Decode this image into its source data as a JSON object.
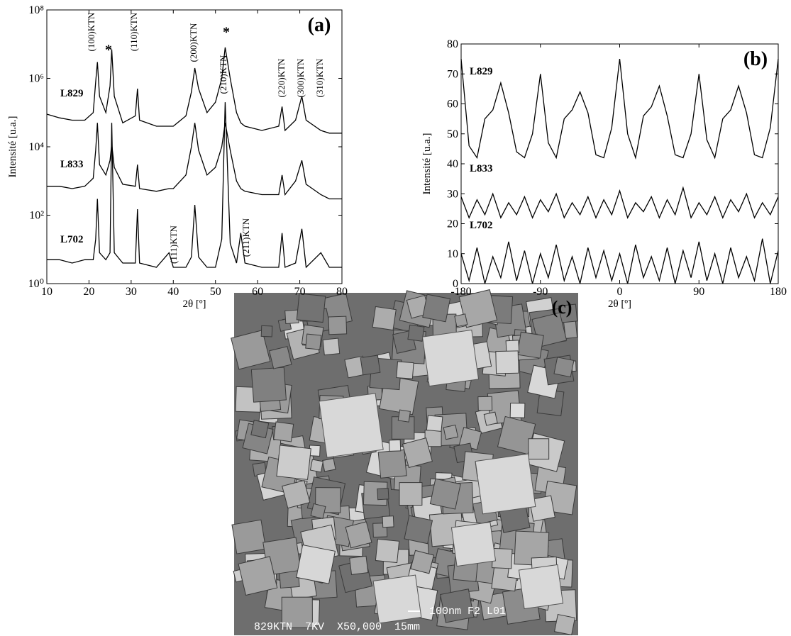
{
  "chart_data": [
    {
      "type": "line",
      "panel_label": "(a)",
      "x_label": "2θ [º]",
      "y_label": "Intensité [u.a.]",
      "log_y": true,
      "xlim": [
        10,
        80
      ],
      "xticks": [
        10,
        20,
        30,
        40,
        50,
        60,
        70,
        80
      ],
      "ylim": [
        1,
        100000000
      ],
      "yticks": [
        {
          "value": 1,
          "label": "10⁰"
        },
        {
          "value": 100,
          "label": "10²"
        },
        {
          "value": 10000,
          "label": "10⁴"
        },
        {
          "value": 1000000,
          "label": "10⁶"
        },
        {
          "value": 100000000,
          "label": "10⁸"
        }
      ],
      "annotations": [
        "(100)KTN",
        "(110)KTN",
        "(200)KTN",
        "(210)KTN",
        "(220)KTN",
        "(300)KTN",
        "(310)KTN",
        "(111)KTN",
        "(211)KTN",
        "*",
        "*"
      ],
      "x": [
        10,
        13,
        16,
        19,
        21,
        21.6,
        22,
        22.5,
        24,
        25,
        25.4,
        26,
        28,
        31,
        31.5,
        32,
        36,
        39,
        40,
        43,
        44.3,
        45.1,
        46,
        48,
        50,
        51.5,
        52.3,
        53.5,
        55,
        56,
        57,
        61,
        65,
        65.8,
        66.5,
        69,
        70.5,
        71.5,
        75,
        77,
        80
      ],
      "series": [
        {
          "name": "L829",
          "color": "#000000",
          "values": [
            90000,
            70000,
            60000,
            60000,
            100000,
            800000,
            3000000,
            300000,
            100000,
            600000,
            7000000,
            300000,
            50000,
            80000,
            500000,
            60000,
            40000,
            40000,
            40000,
            80000,
            400000,
            2000000,
            500000,
            100000,
            200000,
            1000000,
            8000000,
            1000000,
            100000,
            50000,
            40000,
            30000,
            40000,
            150000,
            30000,
            60000,
            300000,
            60000,
            30000,
            25000,
            25000
          ]
        },
        {
          "name": "L833",
          "color": "#000000",
          "values": [
            700,
            700,
            600,
            700,
            1200,
            8000,
            50000,
            3000,
            1500,
            4000,
            12000,
            2500,
            800,
            700,
            3000,
            600,
            500,
            600,
            600,
            1500,
            10000,
            50000,
            8000,
            1500,
            2500,
            10000,
            50000,
            8000,
            1000,
            600,
            500,
            400,
            400,
            1500,
            400,
            1000,
            4000,
            800,
            400,
            300,
            300
          ]
        },
        {
          "name": "L702",
          "color": "#000000",
          "values": [
            5,
            5,
            4,
            5,
            5,
            20,
            300,
            8,
            5,
            8,
            50000,
            8,
            4,
            4,
            150,
            4,
            3,
            8,
            3,
            3,
            6,
            200,
            6,
            3,
            3,
            20,
            200000,
            15,
            4,
            30,
            4,
            3,
            3,
            30,
            3,
            4,
            40,
            3,
            8,
            3,
            3
          ]
        }
      ]
    },
    {
      "type": "line",
      "panel_label": "(b)",
      "x_label": "2θ [º]",
      "y_label": "Intensité [u.a.]",
      "log_y": false,
      "xlim": [
        -180,
        180
      ],
      "xticks": [
        -180,
        -90,
        0,
        90,
        180
      ],
      "ylim": [
        0,
        80
      ],
      "yticks": [
        0,
        10,
        20,
        30,
        40,
        50,
        60,
        70,
        80
      ],
      "x": [
        -180,
        -171,
        -162,
        -153,
        -144,
        -135,
        -126,
        -117,
        -108,
        -99,
        -90,
        -81,
        -72,
        -63,
        -54,
        -45,
        -36,
        -27,
        -18,
        -9,
        0,
        9,
        18,
        27,
        36,
        45,
        54,
        63,
        72,
        81,
        90,
        99,
        108,
        117,
        126,
        135,
        144,
        153,
        162,
        171,
        180
      ],
      "series": [
        {
          "name": "L829",
          "color": "#000000",
          "values": [
            75,
            46,
            42,
            55,
            58,
            67,
            57,
            44,
            42,
            50,
            70,
            47,
            42,
            55,
            58,
            64,
            57,
            43,
            42,
            52,
            75,
            50,
            42,
            56,
            59,
            66,
            56,
            43,
            42,
            50,
            70,
            48,
            42,
            55,
            58,
            66,
            57,
            43,
            42,
            52,
            75
          ]
        },
        {
          "name": "L833",
          "color": "#000000",
          "values": [
            29,
            22,
            28,
            23,
            30,
            22,
            27,
            23,
            29,
            22,
            28,
            24,
            30,
            22,
            27,
            23,
            29,
            22,
            28,
            23,
            31,
            22,
            27,
            24,
            29,
            22,
            28,
            23,
            32,
            22,
            27,
            23,
            29,
            22,
            28,
            24,
            30,
            22,
            27,
            23,
            29
          ]
        },
        {
          "name": "L702",
          "color": "#000000",
          "values": [
            10,
            1,
            12,
            0,
            9,
            2,
            14,
            1,
            11,
            0,
            10,
            2,
            13,
            1,
            9,
            0,
            12,
            2,
            11,
            1,
            10,
            0,
            13,
            2,
            9,
            1,
            12,
            0,
            11,
            2,
            14,
            1,
            10,
            0,
            12,
            2,
            9,
            1,
            15,
            0,
            11
          ]
        }
      ]
    }
  ],
  "image": {
    "label": "(c)",
    "scale_bar": "100nm F2 L01",
    "caption": "829KTN  7KV  X50,000  15mm"
  }
}
